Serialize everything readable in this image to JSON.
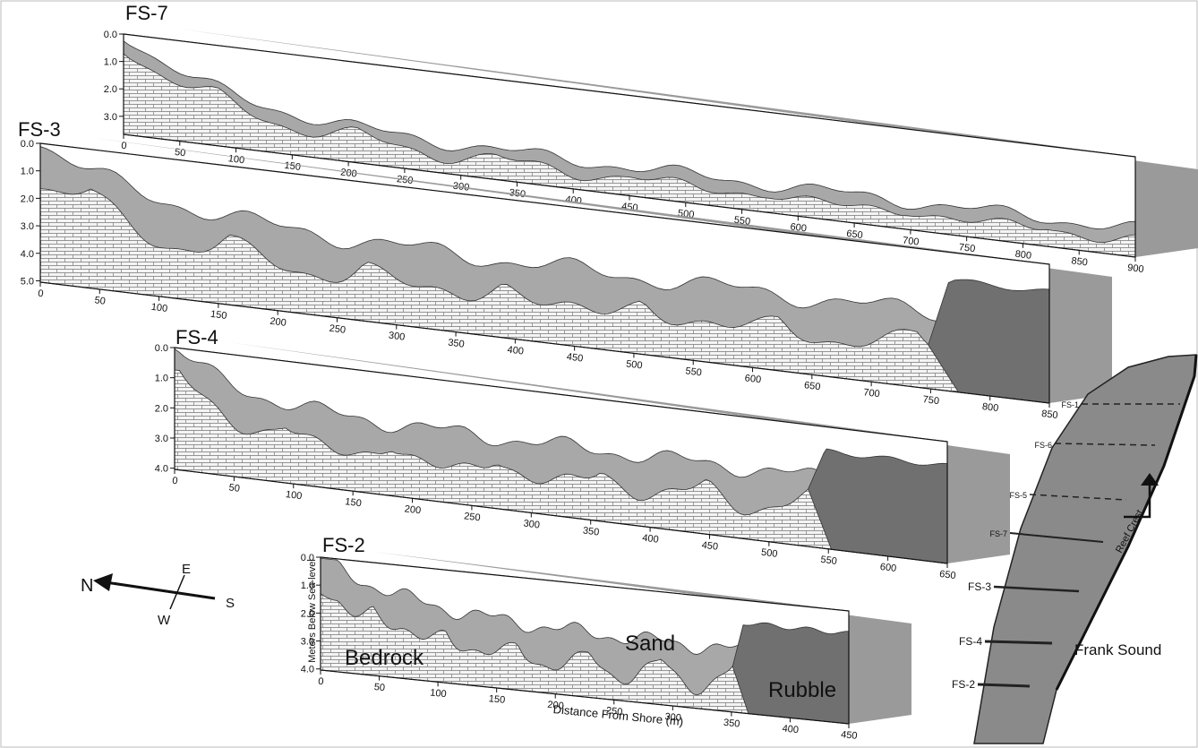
{
  "panels": [
    {
      "label": "FS-7",
      "depth_ticks": [
        "0.0",
        "1.0",
        "2.0",
        "3.0"
      ],
      "distance_ticks": [
        "0",
        "50",
        "100",
        "150",
        "200",
        "250",
        "300",
        "350",
        "400",
        "450",
        "500",
        "550",
        "600",
        "650",
        "700",
        "750",
        "800",
        "850",
        "900"
      ]
    },
    {
      "label": "FS-3",
      "depth_ticks": [
        "0.0",
        "1.0",
        "2.0",
        "3.0",
        "4.0",
        "5.0"
      ],
      "distance_ticks": [
        "0",
        "50",
        "100",
        "150",
        "200",
        "250",
        "300",
        "350",
        "400",
        "450",
        "500",
        "550",
        "600",
        "650",
        "700",
        "750",
        "800",
        "850"
      ]
    },
    {
      "label": "FS-4",
      "depth_ticks": [
        "0.0",
        "1.0",
        "2.0",
        "3.0",
        "4.0"
      ],
      "distance_ticks": [
        "0",
        "50",
        "100",
        "150",
        "200",
        "250",
        "300",
        "350",
        "400",
        "450",
        "500",
        "550",
        "600",
        "650"
      ]
    },
    {
      "label": "FS-2",
      "depth_ticks": [
        "0.0",
        "1.0",
        "2.0",
        "3.0",
        "4.0"
      ],
      "distance_ticks": [
        "0",
        "50",
        "100",
        "150",
        "200",
        "250",
        "300",
        "350",
        "400",
        "450"
      ]
    }
  ],
  "legend": {
    "bedrock": "Bedrock",
    "sand": "Sand",
    "rubble": "Rubble"
  },
  "axis_labels": {
    "y": "Meters Below Sea-level",
    "x": "Distance From Shore (m)"
  },
  "compass": {
    "n": "N",
    "e": "E",
    "s": "S",
    "w": "W"
  },
  "map": {
    "transects": [
      "FS-1",
      "FS-6",
      "FS-5",
      "FS-7",
      "FS-3",
      "FS-4",
      "FS-2"
    ],
    "reef_crest": "Reef Crest",
    "place": "Frank Sound"
  }
}
